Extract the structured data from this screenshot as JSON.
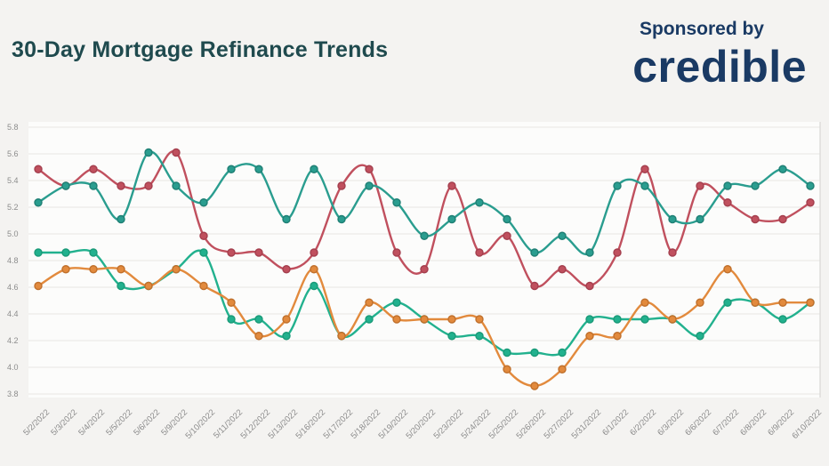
{
  "header": {
    "title": "30-Day Mortgage Refinance Trends",
    "sponsored_by": "Sponsored by",
    "sponsor_name": "credible"
  },
  "colors": {
    "title_text": "#1f4a4e",
    "sponsor_text": "#1a3a64",
    "page_background": "#f4f3f1",
    "plot_background": "#fcfcfb",
    "gridline": "#e7e6e3",
    "right_border": "#d9d8d5",
    "axis_text": "#8c8c8c"
  },
  "chart_data": {
    "type": "line",
    "title": "30-Day Mortgage Refinance Trends",
    "xlabel": "",
    "ylabel": "",
    "ylim": [
      3.8,
      5.8
    ],
    "yticks": [
      5.8,
      5.6,
      5.4,
      5.2,
      5.0,
      4.8,
      4.6,
      4.4,
      4.2,
      4.0,
      3.8
    ],
    "grid": true,
    "legend_position": "none",
    "categories": [
      "5/2/2022",
      "5/3/2022",
      "5/4/2022",
      "5/5/2022",
      "5/6/2022",
      "5/9/2022",
      "5/10/2022",
      "5/11/2022",
      "5/12/2022",
      "5/13/2022",
      "5/16/2022",
      "5/17/2022",
      "5/18/2022",
      "5/19/2022",
      "5/20/2022",
      "5/23/2022",
      "5/24/2022",
      "5/25/2022",
      "5/26/2022",
      "5/27/2022",
      "5/31/2022",
      "6/1/2022",
      "6/2/2022",
      "6/3/2022",
      "6/6/2022",
      "6/7/2022",
      "6/8/2022",
      "6/9/2022",
      "6/10/2022"
    ],
    "series": [
      {
        "name": "green-line",
        "color": "#22b18e",
        "dot_stroke": "#1a9a78",
        "values": [
          4.86,
          4.86,
          4.86,
          4.61,
          4.61,
          4.735,
          4.86,
          4.36,
          4.36,
          4.235,
          4.61,
          4.235,
          4.36,
          4.485,
          4.36,
          4.235,
          4.235,
          4.11,
          4.11,
          4.11,
          4.36,
          4.36,
          4.36,
          4.36,
          4.235,
          4.485,
          4.485,
          4.36,
          4.485
        ]
      },
      {
        "name": "orange-line",
        "color": "#e28a3d",
        "dot_stroke": "#c0702c",
        "values": [
          4.61,
          4.735,
          4.735,
          4.735,
          4.61,
          4.735,
          4.61,
          4.485,
          4.235,
          4.36,
          4.735,
          4.235,
          4.485,
          4.36,
          4.36,
          4.36,
          4.36,
          3.985,
          3.86,
          3.985,
          4.235,
          4.235,
          4.485,
          4.36,
          4.485,
          4.735,
          4.485,
          4.485,
          4.485
        ]
      },
      {
        "name": "red-line",
        "color": "#c0505e",
        "dot_stroke": "#a43f4e",
        "values": [
          5.485,
          5.36,
          5.485,
          5.36,
          5.36,
          5.61,
          4.985,
          4.86,
          4.86,
          4.735,
          4.86,
          5.36,
          5.485,
          4.86,
          4.735,
          5.36,
          4.86,
          4.985,
          4.61,
          4.735,
          4.61,
          4.86,
          5.485,
          4.86,
          5.36,
          5.235,
          5.11,
          5.11,
          5.235
        ]
      },
      {
        "name": "teal-line",
        "color": "#2a9d8f",
        "dot_stroke": "#1f7f74",
        "values": [
          5.235,
          5.36,
          5.36,
          5.11,
          5.61,
          5.36,
          5.235,
          5.485,
          5.485,
          5.11,
          5.485,
          5.11,
          5.36,
          5.235,
          4.985,
          5.11,
          5.235,
          5.11,
          4.86,
          4.985,
          4.86,
          5.36,
          5.36,
          5.11,
          5.11,
          5.36,
          5.36,
          5.485,
          5.36
        ]
      }
    ]
  }
}
